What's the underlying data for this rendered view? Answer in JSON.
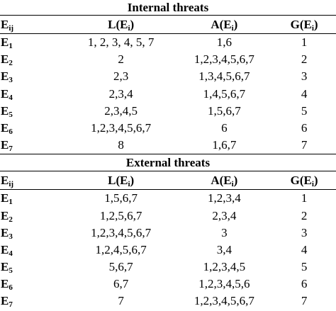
{
  "sections": [
    {
      "title": "Internal threats",
      "header": [
        [
          "E",
          "ij"
        ],
        [
          "L(E",
          "i",
          ")"
        ],
        [
          "A(E",
          "i",
          ")"
        ],
        [
          "G(E",
          "i",
          ")"
        ]
      ],
      "rows": [
        {
          "label": [
            "E",
            "1"
          ],
          "cells": [
            "1, 2, 3, 4, 5, 7",
            "1,6",
            1
          ]
        },
        {
          "label": [
            "E",
            "2"
          ],
          "cells": [
            "2",
            "1,2,3,4,5,6,7",
            2
          ]
        },
        {
          "label": [
            "E",
            "3"
          ],
          "cells": [
            "2,3",
            "1,3,4,5,6,7",
            3
          ]
        },
        {
          "label": [
            "E",
            "4"
          ],
          "cells": [
            "2,3,4",
            "1,4,5,6,7",
            4
          ]
        },
        {
          "label": [
            "E",
            "5"
          ],
          "cells": [
            "2,3,4,5",
            "1,5,6,7",
            5
          ]
        },
        {
          "label": [
            "E",
            "6"
          ],
          "cells": [
            "1,2,3,4,5,6,7",
            "6",
            6
          ]
        },
        {
          "label": [
            "E",
            "7"
          ],
          "cells": [
            "8",
            "1,6,7",
            7
          ]
        }
      ]
    },
    {
      "title": "External threats",
      "header": [
        [
          "E",
          "ij"
        ],
        [
          "L(E",
          "i",
          ")"
        ],
        [
          "A(E",
          "i",
          ")"
        ],
        [
          "G(E",
          "i",
          ")"
        ]
      ],
      "rows": [
        {
          "label": [
            "E",
            "1"
          ],
          "cells": [
            "1,5,6,7",
            "1,2,3,4",
            1
          ]
        },
        {
          "label": [
            "E",
            "2"
          ],
          "cells": [
            "1,2,5,6,7",
            "2,3,4",
            2
          ]
        },
        {
          "label": [
            "E",
            "3"
          ],
          "cells": [
            "1,2,3,4,5,6,7",
            "3",
            3
          ]
        },
        {
          "label": [
            "E",
            "4"
          ],
          "cells": [
            "1,2,4,5,6,7",
            "3,4",
            4
          ]
        },
        {
          "label": [
            "E",
            "5"
          ],
          "cells": [
            "5,6,7",
            "1,2,3,4,5",
            5
          ]
        },
        {
          "label": [
            "E",
            "6"
          ],
          "cells": [
            "6,7",
            "1,2,3,4,5,6",
            6
          ]
        },
        {
          "label": [
            "E",
            "7"
          ],
          "cells": [
            "7",
            "1,2,3,4,5,6,7",
            7
          ]
        }
      ]
    }
  ]
}
